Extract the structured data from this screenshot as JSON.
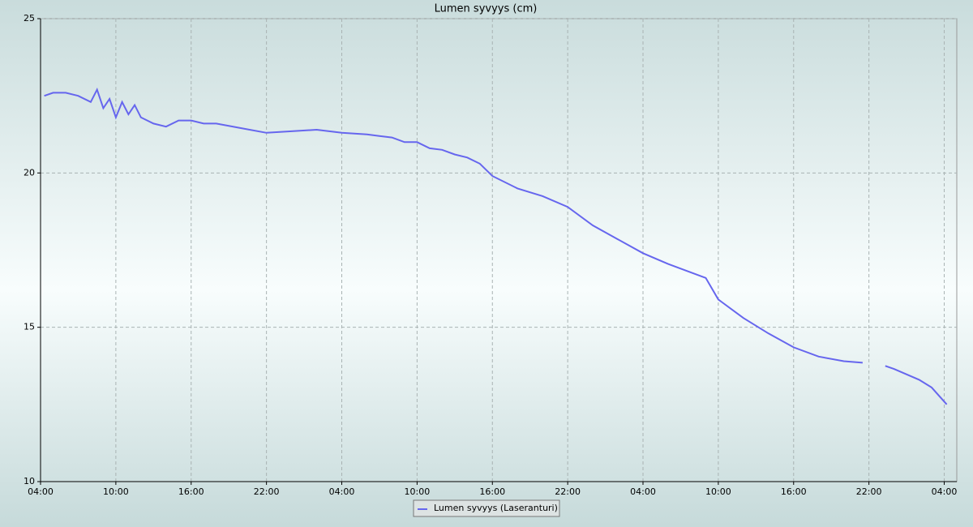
{
  "chart_data": {
    "type": "line",
    "title": "Lumen syvyys (cm)",
    "x": [
      0.3,
      1,
      2,
      3,
      4,
      4.5,
      5,
      5.5,
      6,
      6.5,
      7,
      7.5,
      8,
      8.5,
      9,
      10,
      11,
      12,
      13,
      14,
      16,
      18,
      20,
      22,
      24,
      26,
      27,
      28,
      29,
      30,
      31,
      32,
      33,
      34,
      35,
      36,
      38,
      40,
      42,
      44,
      46,
      48,
      50,
      52,
      53,
      54,
      56,
      58,
      60,
      62,
      64,
      65.5,
      66,
      67.3,
      68,
      70,
      71,
      72.2
    ],
    "xlim": [
      0,
      73
    ],
    "xticks": [
      {
        "value": 0,
        "label": "04:00"
      },
      {
        "value": 6,
        "label": "10:00"
      },
      {
        "value": 12,
        "label": "16:00"
      },
      {
        "value": 18,
        "label": "22:00"
      },
      {
        "value": 24,
        "label": "04:00"
      },
      {
        "value": 30,
        "label": "10:00"
      },
      {
        "value": 36,
        "label": "16:00"
      },
      {
        "value": 42,
        "label": "22:00"
      },
      {
        "value": 48,
        "label": "04:00"
      },
      {
        "value": 54,
        "label": "10:00"
      },
      {
        "value": 60,
        "label": "16:00"
      },
      {
        "value": 66,
        "label": "22:00"
      },
      {
        "value": 72,
        "label": "04:00"
      }
    ],
    "ylim": [
      10,
      25
    ],
    "yticks": [
      10,
      15,
      20,
      25
    ],
    "grid": true,
    "series": [
      {
        "name": "Lumen syvyys (Laseranturi)",
        "color": "#6666ee",
        "values": [
          22.5,
          22.6,
          22.6,
          22.5,
          22.3,
          22.7,
          22.1,
          22.4,
          21.8,
          22.3,
          21.9,
          22.2,
          21.8,
          21.7,
          21.6,
          21.5,
          21.7,
          21.7,
          21.6,
          21.6,
          21.45,
          21.3,
          21.35,
          21.4,
          21.3,
          21.25,
          21.2,
          21.15,
          21.0,
          21.0,
          20.8,
          20.75,
          20.6,
          20.5,
          20.3,
          19.9,
          19.5,
          19.25,
          18.9,
          18.3,
          17.85,
          17.4,
          17.05,
          16.75,
          16.6,
          15.9,
          15.3,
          14.8,
          14.35,
          14.05,
          13.9,
          13.85,
          null,
          13.75,
          13.65,
          13.3,
          13.05,
          12.5
        ]
      }
    ],
    "legend": "bottom"
  }
}
